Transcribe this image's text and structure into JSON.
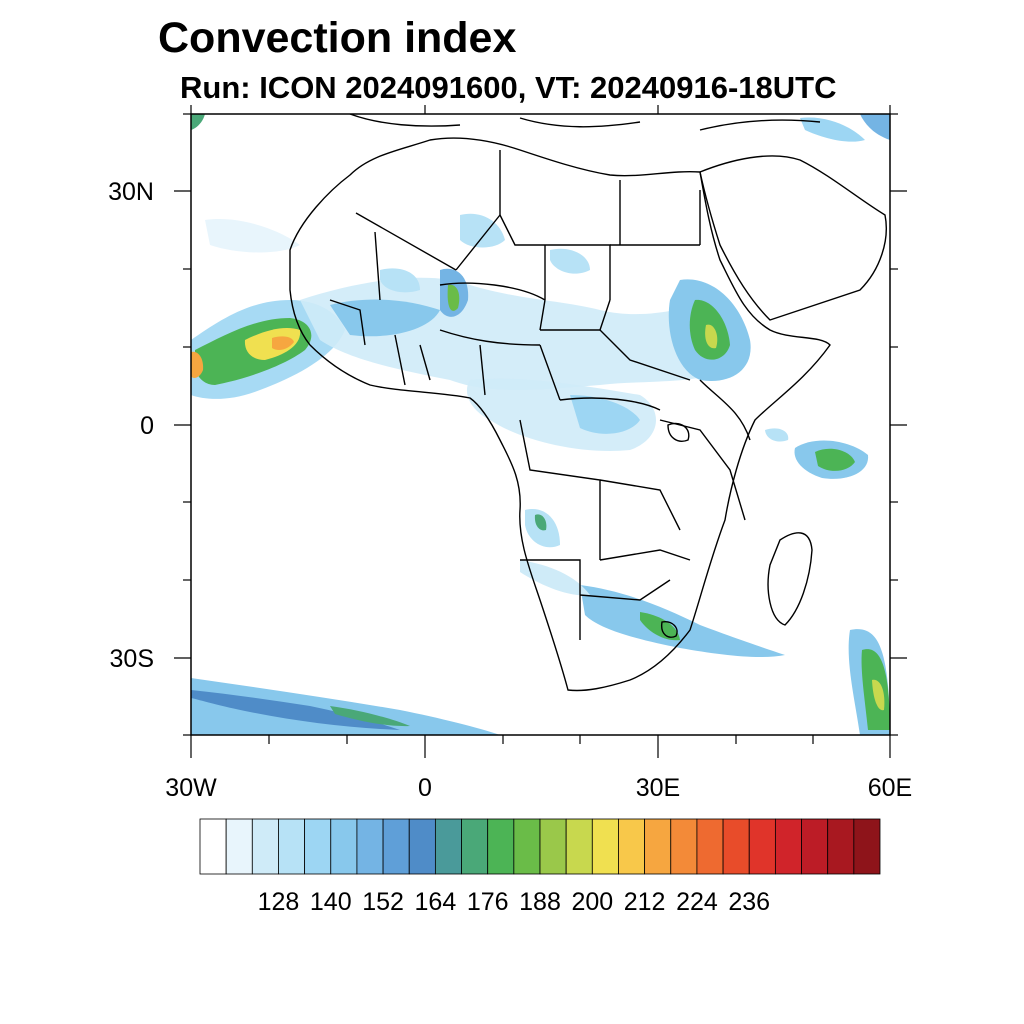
{
  "title": "Convection index",
  "subtitle": "Run: ICON 2024091600,  VT: 20240916-18UTC",
  "map": {
    "lon_range": [
      -30,
      60
    ],
    "lat_range": [
      -40,
      40
    ],
    "lat_labels": [
      "30N",
      "0",
      "30S"
    ],
    "lon_labels": [
      "30W",
      "0",
      "30E",
      "60E"
    ]
  },
  "colorbar": {
    "tick_labels": [
      "128",
      "140",
      "152",
      "164",
      "176",
      "188",
      "200",
      "212",
      "224",
      "236"
    ],
    "colors": [
      "#ffffff",
      "#e8f5fc",
      "#cfebf8",
      "#b7e2f6",
      "#9dd6f3",
      "#88c8ec",
      "#74b4e4",
      "#5f9fd8",
      "#4f8cc8",
      "#4a9a9a",
      "#4aa878",
      "#4cb455",
      "#6abc48",
      "#9ac84a",
      "#c8d84e",
      "#f0e050",
      "#f8c84a",
      "#f6a640",
      "#f38a38",
      "#ee6a30",
      "#e84c2a",
      "#e0342a",
      "#d0242a",
      "#bc1c26",
      "#a81820",
      "#8e141a"
    ]
  },
  "legend_colors": {
    "light": "#b7e2f6",
    "mid": "#74b4e4",
    "green": "#4cb455",
    "yellow": "#f0e050",
    "orange": "#f6a640"
  }
}
